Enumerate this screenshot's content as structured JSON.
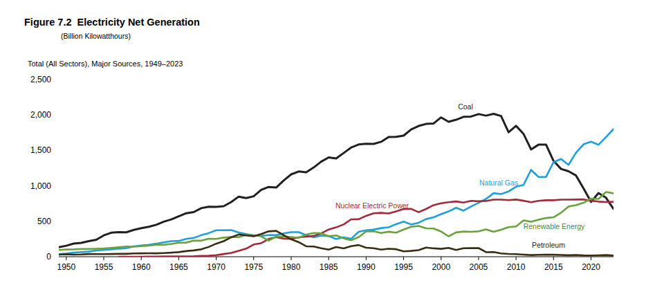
{
  "chart_data": {
    "type": "line",
    "title": "Figure 7.2  Electricity Net Generation",
    "subtitle": "(Billion Kilowatthours)",
    "annotations": [
      "Total (All Sectors), Major Sources, 1949–2023"
    ],
    "x": [
      1949,
      1950,
      1951,
      1952,
      1953,
      1954,
      1955,
      1956,
      1957,
      1958,
      1959,
      1960,
      1961,
      1962,
      1963,
      1964,
      1965,
      1966,
      1967,
      1968,
      1969,
      1970,
      1971,
      1972,
      1973,
      1974,
      1975,
      1976,
      1977,
      1978,
      1979,
      1980,
      1981,
      1982,
      1983,
      1984,
      1985,
      1986,
      1987,
      1988,
      1989,
      1990,
      1991,
      1992,
      1993,
      1994,
      1995,
      1996,
      1997,
      1998,
      1999,
      2000,
      2001,
      2002,
      2003,
      2004,
      2005,
      2006,
      2007,
      2008,
      2009,
      2010,
      2011,
      2012,
      2013,
      2014,
      2015,
      2016,
      2017,
      2018,
      2019,
      2020,
      2021,
      2022,
      2023
    ],
    "series": [
      {
        "name": "Coal",
        "color": "#231f20",
        "values": [
          135,
          155,
          185,
          195,
          219,
          239,
          301,
          339,
          346,
          344,
          378,
          403,
          422,
          450,
          494,
          526,
          571,
          613,
          630,
          685,
          706,
          704,
          713,
          771,
          848,
          828,
          853,
          944,
          985,
          976,
          1075,
          1162,
          1203,
          1192,
          1259,
          1342,
          1402,
          1386,
          1464,
          1541,
          1584,
          1594,
          1592,
          1622,
          1690,
          1691,
          1709,
          1796,
          1845,
          1874,
          1881,
          1966,
          1904,
          1933,
          1974,
          1978,
          2013,
          1991,
          2016,
          1986,
          1756,
          1847,
          1733,
          1514,
          1581,
          1582,
          1352,
          1239,
          1206,
          1146,
          965,
          773,
          898,
          832,
          675
        ]
      },
      {
        "name": "Natural Gas",
        "color": "#1ea0db",
        "values": [
          37,
          45,
          57,
          65,
          72,
          88,
          95,
          104,
          114,
          120,
          147,
          158,
          169,
          184,
          202,
          220,
          222,
          251,
          265,
          304,
          333,
          373,
          374,
          376,
          341,
          320,
          300,
          295,
          306,
          305,
          329,
          346,
          346,
          305,
          274,
          297,
          292,
          249,
          273,
          253,
          352,
          373,
          382,
          404,
          415,
          460,
          496,
          455,
          479,
          531,
          556,
          601,
          639,
          691,
          650,
          710,
          761,
          816,
          897,
          883,
          921,
          988,
          1014,
          1226,
          1125,
          1127,
          1335,
          1379,
          1296,
          1469,
          1586,
          1624,
          1580,
          1689,
          1802
        ]
      },
      {
        "name": "Nuclear Electric Power",
        "color": "#a3293a",
        "values": [
          null,
          null,
          null,
          null,
          null,
          null,
          null,
          null,
          0,
          0.2,
          0.2,
          0.5,
          1.7,
          2.3,
          3.2,
          3.3,
          3.7,
          5.5,
          7.7,
          12.5,
          13.9,
          21.8,
          38.1,
          54.1,
          83.5,
          114,
          173,
          191,
          251,
          276,
          255,
          251,
          273,
          283,
          294,
          328,
          384,
          414,
          455,
          527,
          529,
          577,
          613,
          619,
          610,
          640,
          673,
          675,
          629,
          674,
          728,
          754,
          769,
          780,
          764,
          789,
          782,
          787,
          806,
          806,
          799,
          807,
          790,
          769,
          789,
          797,
          797,
          806,
          805,
          807,
          809,
          790,
          778,
          772,
          775
        ]
      },
      {
        "name": "Renewable Energy",
        "color": "#6aa23c",
        "values": [
          95,
          101,
          104,
          110,
          110,
          112,
          116,
          125,
          133,
          143,
          141,
          149,
          156,
          170,
          169,
          181,
          197,
          199,
          226,
          226,
          254,
          251,
          270,
          277,
          277,
          307,
          303,
          288,
          226,
          284,
          285,
          279,
          266,
          313,
          335,
          331,
          291,
          301,
          260,
          233,
          276,
          357,
          358,
          334,
          353,
          339,
          384,
          423,
          434,
          401,
          398,
          356,
          288,
          343,
          355,
          351,
          358,
          385,
          352,
          380,
          418,
          427,
          513,
          494,
          523,
          546,
          556,
          621,
          709,
          728,
          761,
          821,
          815,
          913,
          895
        ]
      },
      {
        "name": "Petroleum",
        "color": "#3a2c10",
        "values": [
          29,
          34,
          29,
          32,
          38,
          36,
          37,
          38,
          40,
          40,
          47,
          48,
          49,
          48,
          52,
          57,
          65,
          79,
          89,
          104,
          138,
          184,
          220,
          274,
          314,
          301,
          289,
          320,
          358,
          365,
          304,
          246,
          206,
          147,
          144,
          120,
          100,
          137,
          118,
          149,
          165,
          127,
          120,
          100,
          113,
          106,
          75,
          82,
          93,
          129,
          118,
          111,
          125,
          95,
          119,
          121,
          122,
          64,
          66,
          46,
          39,
          37,
          30,
          23,
          27,
          30,
          28,
          24,
          21,
          25,
          18,
          17,
          19,
          23,
          16
        ]
      }
    ],
    "xlim": [
      1949,
      2023
    ],
    "xticks": [
      1950,
      1955,
      1960,
      1965,
      1970,
      1975,
      1980,
      1985,
      1990,
      1995,
      2000,
      2005,
      2010,
      2015,
      2020
    ],
    "ylim": [
      0,
      2500
    ],
    "yticks": [
      0,
      500,
      {
        "value": 1000,
        "label": "1,000"
      },
      {
        "value": 1500,
        "label": "1,500"
      },
      {
        "value": 2000,
        "label": "2,000"
      },
      {
        "value": 2500,
        "label": "2,500"
      }
    ],
    "grid": false
  }
}
